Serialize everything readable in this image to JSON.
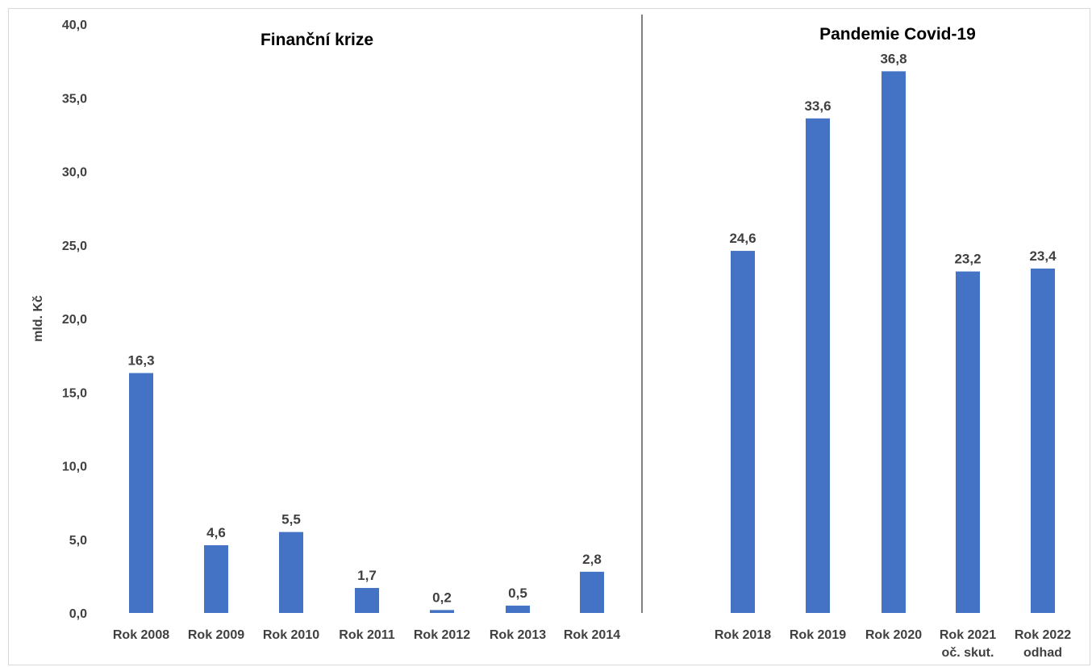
{
  "chart_data": {
    "type": "bar",
    "ylabel": "mld. Kč",
    "ylim": [
      0,
      40
    ],
    "y_ticks": [
      "0,0",
      "5,0",
      "10,0",
      "15,0",
      "20,0",
      "25,0",
      "30,0",
      "35,0",
      "40,0"
    ],
    "grid": false,
    "groups": [
      {
        "title": "Finanční krize",
        "categories": [
          [
            "Rok 2008"
          ],
          [
            "Rok 2009"
          ],
          [
            "Rok 2010"
          ],
          [
            "Rok 2011"
          ],
          [
            "Rok 2012"
          ],
          [
            "Rok 2013"
          ],
          [
            "Rok 2014"
          ]
        ],
        "values": [
          16.3,
          4.6,
          5.5,
          1.7,
          0.2,
          0.5,
          2.8
        ],
        "labels": [
          "16,3",
          "4,6",
          "5,5",
          "1,7",
          "0,2",
          "0,5",
          "2,8"
        ]
      },
      {
        "title": "Pandemie Covid-19",
        "categories": [
          [
            "Rok 2018"
          ],
          [
            "Rok 2019"
          ],
          [
            "Rok 2020"
          ],
          [
            "Rok 2021",
            "oč. skut."
          ],
          [
            "Rok 2022",
            "odhad"
          ]
        ],
        "values": [
          24.6,
          33.6,
          36.8,
          23.2,
          23.4
        ],
        "labels": [
          "24,6",
          "33,6",
          "36,8",
          "23,2",
          "23,4"
        ]
      }
    ],
    "bar_color": "#4472C4",
    "divider_color": "#808080"
  }
}
